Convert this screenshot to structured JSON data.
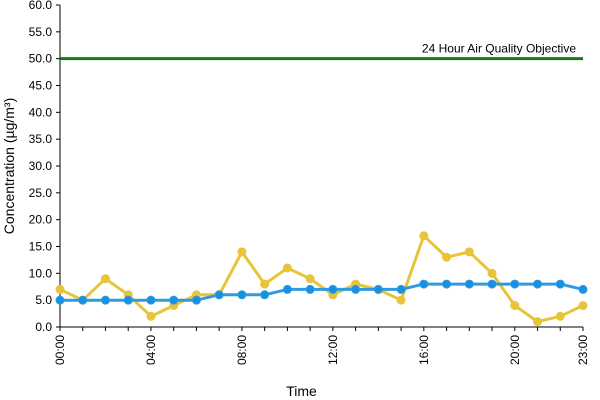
{
  "chart_data": {
    "type": "line",
    "title": "",
    "xlabel": "Time",
    "ylabel": "Concentration (µg/m³)",
    "ylim": [
      0,
      60
    ],
    "yticks": [
      "0.0",
      "5.0",
      "10.0",
      "15.0",
      "20.0",
      "25.0",
      "30.0",
      "35.0",
      "40.0",
      "45.0",
      "50.0",
      "55.0",
      "60.0"
    ],
    "categories": [
      "00:00",
      "01:00",
      "02:00",
      "03:00",
      "04:00",
      "05:00",
      "06:00",
      "07:00",
      "08:00",
      "09:00",
      "10:00",
      "11:00",
      "12:00",
      "13:00",
      "14:00",
      "15:00",
      "16:00",
      "17:00",
      "18:00",
      "19:00",
      "20:00",
      "21:00",
      "22:00",
      "23:00"
    ],
    "xtick_labels": [
      "00:00",
      "04:00",
      "08:00",
      "12:00",
      "16:00",
      "20:00",
      "23:00"
    ],
    "grid": false,
    "objective": {
      "value": 50,
      "label": "24 Hour Air Quality Objective",
      "color": "#1a7a1a"
    },
    "series": [
      {
        "color": "#e8c43a",
        "marker_color": "#e8c43a",
        "values": [
          7,
          5,
          9,
          6,
          2,
          4,
          6,
          6,
          14,
          8,
          11,
          9,
          6,
          8,
          7,
          5,
          17,
          13,
          14,
          10,
          4,
          1,
          2,
          4
        ]
      },
      {
        "color": "#2e9be0",
        "marker_color": "#1a8fe0",
        "values": [
          5,
          5,
          5,
          5,
          5,
          5,
          5,
          6,
          6,
          6,
          7,
          7,
          7,
          7,
          7,
          7,
          8,
          8,
          8,
          8,
          8,
          8,
          8,
          7
        ]
      }
    ]
  }
}
